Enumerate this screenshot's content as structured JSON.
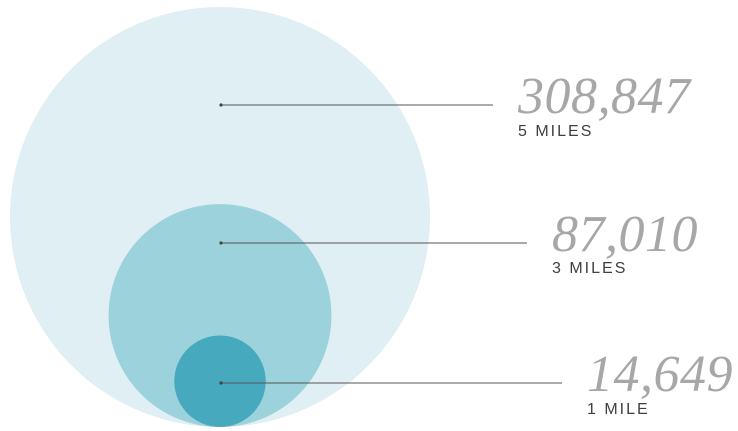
{
  "chart_data": {
    "type": "bubble",
    "series": [
      {
        "value": 308847,
        "value_label": "308,847",
        "radius_label": "5 MILES",
        "color": "#e0eff4"
      },
      {
        "value": 87010,
        "value_label": "87,010",
        "radius_label": "3 MILES",
        "color": "#9bd2dc"
      },
      {
        "value": 14649,
        "value_label": "14,649",
        "radius_label": "1 MILE",
        "color": "#47a9be"
      }
    ]
  }
}
